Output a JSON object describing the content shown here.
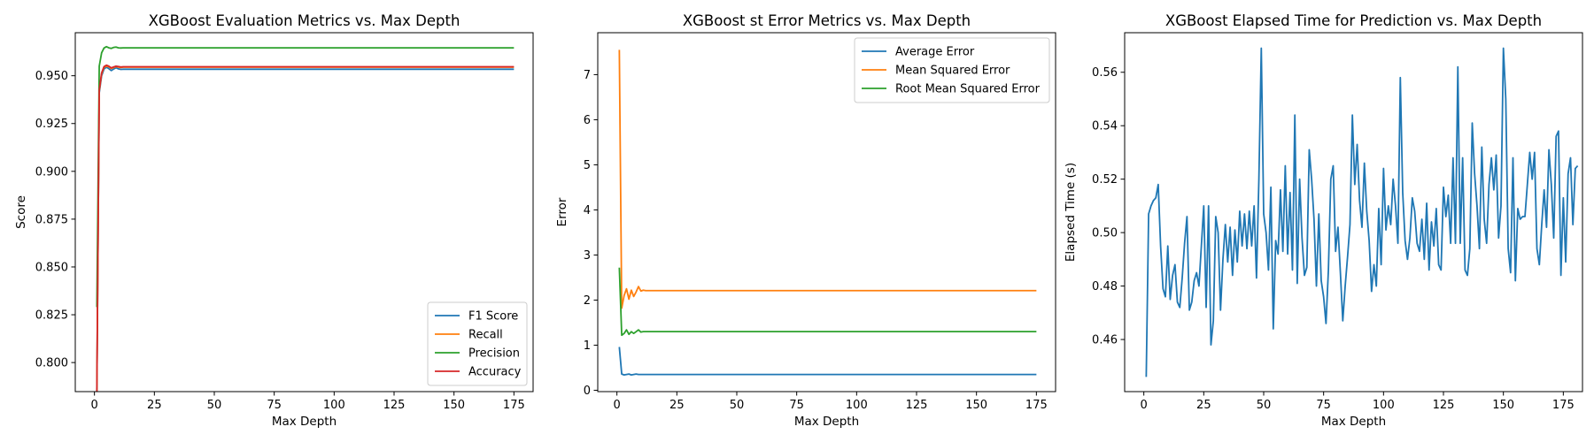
{
  "chart_data": [
    {
      "type": "line",
      "title": "XGBoost Evaluation Metrics vs. Max Depth",
      "xlabel": "Max Depth",
      "ylabel": "Score",
      "xlim": [
        -8,
        183
      ],
      "ylim": [
        0.7848,
        0.9725
      ],
      "xticks": [
        0,
        25,
        50,
        75,
        100,
        125,
        150,
        175
      ],
      "yticks": [
        0.8,
        0.825,
        0.85,
        0.875,
        0.9,
        0.925,
        0.95
      ],
      "ytick_format": 3,
      "grid": false,
      "legend_position": "lower-right",
      "x_range": [
        1,
        175
      ],
      "series": [
        {
          "name": "F1 Score",
          "color": "#1f77b4",
          "values": [
            0.785,
            0.941,
            0.95,
            0.9535,
            0.9545,
            0.9537,
            0.9527,
            0.9535,
            0.9542,
            0.9536,
            0.9533,
            0.9534
          ],
          "tail": 0.9534
        },
        {
          "name": "Recall",
          "color": "#ff7f0e",
          "values": [
            0.785,
            0.942,
            0.951,
            0.9545,
            0.955,
            0.9547,
            0.9538,
            0.9543,
            0.9548,
            0.9545,
            0.9543,
            0.9545
          ],
          "tail": 0.9545
        },
        {
          "name": "Precision",
          "color": "#2ca02c",
          "values": [
            0.829,
            0.955,
            0.962,
            0.9645,
            0.9652,
            0.9646,
            0.9643,
            0.9648,
            0.965,
            0.9646,
            0.9645,
            0.9646
          ],
          "tail": 0.9646
        },
        {
          "name": "Accuracy",
          "color": "#d62728",
          "values": [
            0.785,
            0.9425,
            0.9515,
            0.9548,
            0.9555,
            0.955,
            0.9541,
            0.9546,
            0.955,
            0.9548,
            0.9546,
            0.9547
          ],
          "tail": 0.9547
        }
      ]
    },
    {
      "type": "line",
      "title": "XGBoost st Error Metrics vs. Max Depth",
      "xlabel": "Max Depth",
      "ylabel": "Error",
      "xlim": [
        -8,
        183
      ],
      "ylim": [
        -0.03,
        7.93
      ],
      "xticks": [
        0,
        25,
        50,
        75,
        100,
        125,
        150,
        175
      ],
      "yticks": [
        0,
        1,
        2,
        3,
        4,
        5,
        6,
        7
      ],
      "ytick_format": 0,
      "grid": false,
      "legend_position": "upper-right",
      "x_range": [
        1,
        175
      ],
      "series": [
        {
          "name": "Average Error",
          "color": "#1f77b4",
          "values": [
            0.96,
            0.36,
            0.34,
            0.35,
            0.36,
            0.34,
            0.35,
            0.36,
            0.35,
            0.35,
            0.35,
            0.35
          ],
          "tail": 0.35
        },
        {
          "name": "Mean Squared Error",
          "color": "#ff7f0e",
          "values": [
            7.55,
            1.82,
            2.1,
            2.25,
            2.02,
            2.22,
            2.08,
            2.18,
            2.3,
            2.2,
            2.22,
            2.21
          ],
          "tail": 2.21
        },
        {
          "name": "Root Mean Squared Error",
          "color": "#2ca02c",
          "values": [
            2.72,
            1.22,
            1.26,
            1.34,
            1.24,
            1.3,
            1.26,
            1.3,
            1.34,
            1.29,
            1.3,
            1.3
          ],
          "tail": 1.3
        }
      ]
    },
    {
      "type": "line",
      "title": "XGBoost Elapsed Time for Prediction vs. Max Depth",
      "xlabel": "Max Depth",
      "ylabel": "Elapsed Time (s)",
      "xlim": [
        -8,
        183
      ],
      "ylim": [
        0.4405,
        0.5748
      ],
      "xticks": [
        0,
        25,
        50,
        75,
        100,
        125,
        150,
        175
      ],
      "yticks": [
        0.46,
        0.48,
        0.5,
        0.52,
        0.54,
        0.56
      ],
      "ytick_format": 2,
      "grid": false,
      "x_range": [
        1,
        175
      ],
      "series": [
        {
          "name": "",
          "color": "#1f77b4",
          "values": [
            0.446,
            0.507,
            0.51,
            0.512,
            0.513,
            0.518,
            0.495,
            0.479,
            0.476,
            0.495,
            0.475,
            0.484,
            0.488,
            0.474,
            0.472,
            0.483,
            0.496,
            0.506,
            0.471,
            0.474,
            0.482,
            0.485,
            0.48,
            0.495,
            0.51,
            0.472,
            0.51,
            0.458,
            0.467,
            0.506,
            0.5,
            0.471,
            0.49,
            0.503,
            0.489,
            0.502,
            0.484,
            0.501,
            0.489,
            0.508,
            0.495,
            0.507,
            0.494,
            0.508,
            0.495,
            0.51,
            0.483,
            0.52,
            0.569,
            0.507,
            0.5,
            0.486,
            0.517,
            0.464,
            0.497,
            0.492,
            0.516,
            0.493,
            0.525,
            0.492,
            0.515,
            0.486,
            0.544,
            0.481,
            0.52,
            0.498,
            0.484,
            0.487,
            0.531,
            0.52,
            0.505,
            0.48,
            0.507,
            0.482,
            0.476,
            0.466,
            0.486,
            0.52,
            0.525,
            0.493,
            0.502,
            0.485,
            0.467,
            0.48,
            0.491,
            0.503,
            0.544,
            0.518,
            0.533,
            0.512,
            0.502,
            0.526,
            0.508,
            0.497,
            0.478,
            0.488,
            0.48,
            0.509,
            0.488,
            0.524,
            0.501,
            0.51,
            0.503,
            0.52,
            0.51,
            0.496,
            0.558,
            0.515,
            0.497,
            0.49,
            0.498,
            0.513,
            0.508,
            0.496,
            0.493,
            0.505,
            0.49,
            0.511,
            0.486,
            0.504,
            0.495,
            0.509,
            0.488,
            0.486,
            0.517,
            0.506,
            0.514,
            0.496,
            0.528,
            0.496,
            0.562,
            0.496,
            0.528,
            0.486,
            0.484,
            0.494,
            0.541,
            0.522,
            0.51,
            0.494,
            0.532,
            0.505,
            0.496,
            0.518,
            0.528,
            0.516,
            0.529,
            0.498,
            0.51,
            0.569,
            0.55,
            0.494,
            0.485,
            0.528,
            0.482,
            0.509,
            0.505,
            0.506,
            0.506,
            0.518,
            0.53,
            0.52,
            0.53,
            0.494,
            0.488,
            0.503,
            0.516,
            0.502,
            0.531,
            0.518,
            0.498,
            0.536,
            0.538,
            0.484,
            0.513,
            0.489,
            0.522,
            0.528,
            0.503,
            0.524,
            0.525
          ]
        }
      ]
    }
  ]
}
